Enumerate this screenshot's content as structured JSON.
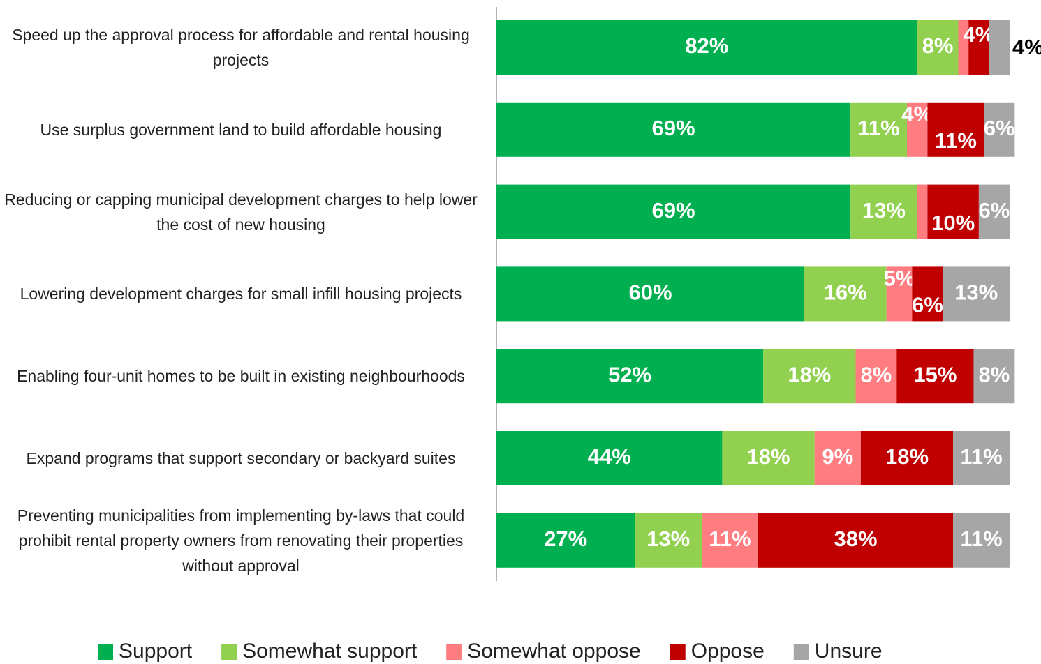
{
  "chart_data": {
    "type": "bar",
    "orientation": "horizontal",
    "stacked": true,
    "legend": "bottom",
    "categories": [
      "Speed up the approval process for affordable and rental housing projects",
      "Use surplus government land to build affordable housing",
      "Reducing or capping municipal development charges to help lower the cost of new housing",
      "Lowering development charges for small infill housing projects",
      "Enabling four-unit homes to be built in existing neighbourhoods",
      "Expand programs that support secondary or backyard suites",
      "Preventing municipalities from implementing by-laws that could prohibit rental property owners from renovating their properties without approval"
    ],
    "series": [
      {
        "name": "Support",
        "color": "#00b050",
        "values": [
          82,
          69,
          69,
          60,
          52,
          44,
          27
        ],
        "value_labels": [
          "82%",
          "69%",
          "69%",
          "60%",
          "52%",
          "44%",
          "27%"
        ]
      },
      {
        "name": "Somewhat support",
        "color": "#92d050",
        "values": [
          8,
          11,
          13,
          16,
          18,
          18,
          13
        ],
        "value_labels": [
          "8%",
          "11%",
          "13%",
          "16%",
          "18%",
          "18%",
          "13%"
        ]
      },
      {
        "name": "Somewhat oppose",
        "color": "#ff7c80",
        "values": [
          2,
          4,
          2,
          5,
          8,
          9,
          11
        ],
        "value_labels": [
          null,
          "4%",
          null,
          "5%",
          "8%",
          "9%",
          "11%"
        ]
      },
      {
        "name": "Oppose",
        "color": "#c00000",
        "values": [
          4,
          11,
          10,
          6,
          15,
          18,
          38
        ],
        "value_labels": [
          "4%",
          "11%",
          "10%",
          "6%",
          "15%",
          "18%",
          "38%"
        ]
      },
      {
        "name": "Unsure",
        "color": "#a6a6a6",
        "values": [
          4,
          6,
          6,
          13,
          8,
          11,
          11
        ],
        "value_labels": [
          "4%",
          "6%",
          "6%",
          "13%",
          "8%",
          "11%",
          "11%"
        ]
      }
    ]
  }
}
